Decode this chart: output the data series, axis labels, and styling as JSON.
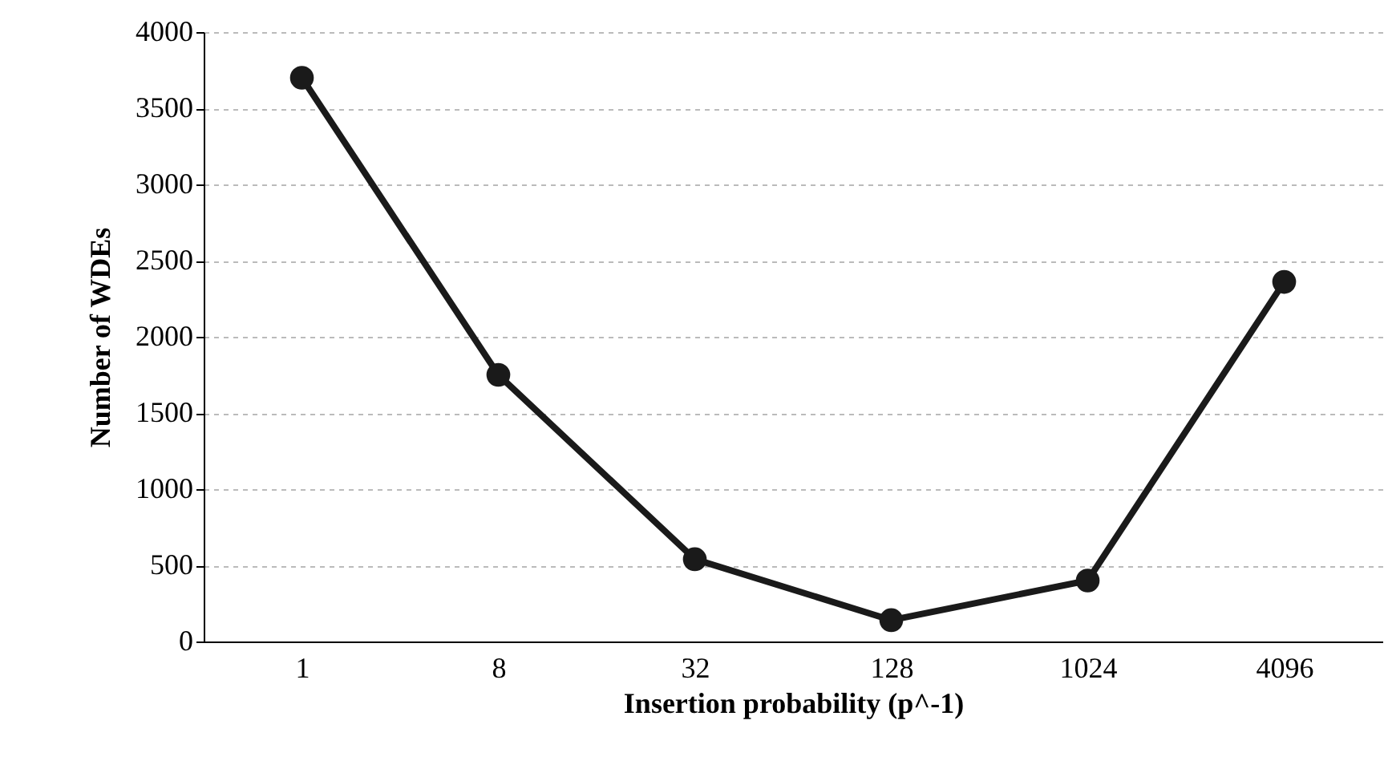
{
  "chart_data": {
    "type": "line",
    "xlabel": "Insertion probability (p^-1)",
    "ylabel": "Number of WDEs",
    "categories": [
      "1",
      "8",
      "32",
      "128",
      "1024",
      "4096"
    ],
    "series": [
      {
        "color": "#1a1a1a",
        "values": [
          3700,
          1750,
          540,
          140,
          400,
          2360
        ]
      }
    ],
    "ylim": [
      0,
      4000
    ],
    "yticks": [
      0,
      500,
      1000,
      1500,
      2000,
      2500,
      3000,
      3500,
      4000
    ],
    "grid": "y",
    "marker": "circle",
    "line_style": "solid",
    "legend": false
  }
}
